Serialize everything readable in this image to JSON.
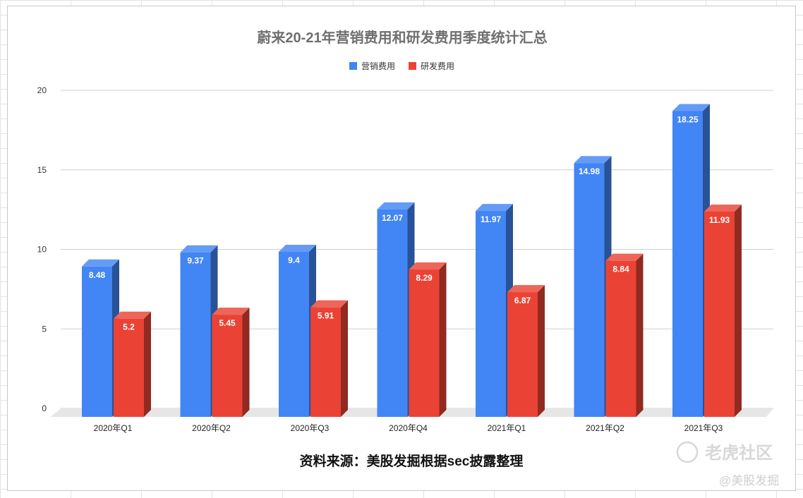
{
  "chart_data": {
    "type": "bar",
    "title": "蔚来20-21年营销费用和研发费用季度统计汇总",
    "categories": [
      "2020年Q1",
      "2020年Q2",
      "2020年Q3",
      "2020年Q4",
      "2021年Q1",
      "2021年Q2",
      "2021年Q3"
    ],
    "series": [
      {
        "name": "营销费用",
        "color": "#4285f4",
        "values": [
          8.48,
          9.37,
          9.4,
          12.07,
          11.97,
          14.98,
          18.25
        ]
      },
      {
        "name": "研发费用",
        "color": "#ea4335",
        "values": [
          5.2,
          5.45,
          5.91,
          8.29,
          6.87,
          8.84,
          11.93
        ]
      }
    ],
    "yticks": [
      "0",
      "5",
      "10",
      "15",
      "20"
    ],
    "ylim": [
      0,
      20
    ],
    "grid": true,
    "legend_position": "top-center",
    "style": "3d-column",
    "data_labels": true
  },
  "footer": {
    "source": "资料来源：美股发掘根据sec披露整理"
  },
  "watermark": {
    "brand": "老虎社区",
    "handle": "@美股发掘"
  }
}
